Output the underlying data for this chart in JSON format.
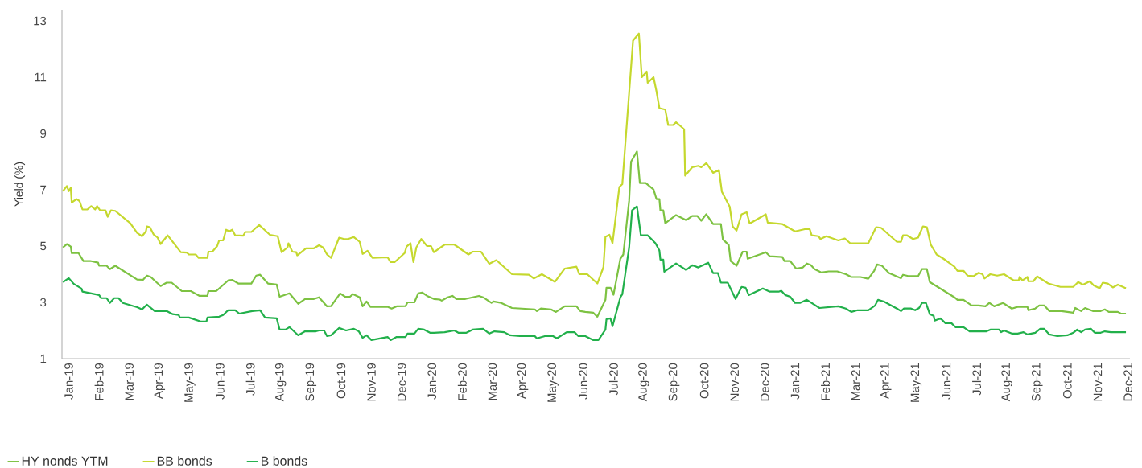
{
  "chart_data": {
    "type": "line",
    "ylabel": "Yield (%)",
    "legend": "bottom",
    "xlim": [
      "2018-12-25",
      "2021-12-03"
    ],
    "ylim": [
      1,
      13.4
    ],
    "yticks": [
      1,
      3,
      5,
      7,
      9,
      11,
      13
    ],
    "xticks": [
      {
        "value": "2019-01",
        "label": "Jan-19"
      },
      {
        "value": "2019-02",
        "label": "Feb-19"
      },
      {
        "value": "2019-03",
        "label": "Mar-19"
      },
      {
        "value": "2019-04",
        "label": "Apr-19"
      },
      {
        "value": "2019-05",
        "label": "May-19"
      },
      {
        "value": "2019-06",
        "label": "Jun-19"
      },
      {
        "value": "2019-07",
        "label": "Jul-19"
      },
      {
        "value": "2019-08",
        "label": "Aug-19"
      },
      {
        "value": "2019-09",
        "label": "Sep-19"
      },
      {
        "value": "2019-10",
        "label": "Oct-19"
      },
      {
        "value": "2019-11",
        "label": "Nov-19"
      },
      {
        "value": "2019-12",
        "label": "Dec-19"
      },
      {
        "value": "2020-01",
        "label": "Jan-20"
      },
      {
        "value": "2020-02",
        "label": "Feb-20"
      },
      {
        "value": "2020-03",
        "label": "Mar-20"
      },
      {
        "value": "2020-04",
        "label": "Apr-20"
      },
      {
        "value": "2020-05",
        "label": "May-20"
      },
      {
        "value": "2020-06",
        "label": "Jun-20"
      },
      {
        "value": "2020-07",
        "label": "Jul-20"
      },
      {
        "value": "2020-08",
        "label": "Aug-20"
      },
      {
        "value": "2020-09",
        "label": "Sep-20"
      },
      {
        "value": "2020-10",
        "label": "Oct-20"
      },
      {
        "value": "2020-11",
        "label": "Nov-20"
      },
      {
        "value": "2020-12",
        "label": "Dec-20"
      },
      {
        "value": "2021-01",
        "label": "Jan-21"
      },
      {
        "value": "2021-02",
        "label": "Feb-21"
      },
      {
        "value": "2021-03",
        "label": "Mar-21"
      },
      {
        "value": "2021-04",
        "label": "Apr-21"
      },
      {
        "value": "2021-05",
        "label": "May-21"
      },
      {
        "value": "2021-06",
        "label": "Jun-21"
      },
      {
        "value": "2021-07",
        "label": "Jul-21"
      },
      {
        "value": "2021-08",
        "label": "Aug-21"
      },
      {
        "value": "2021-09",
        "label": "Sep-21"
      },
      {
        "value": "2021-10",
        "label": "Oct-21"
      },
      {
        "value": "2021-11",
        "label": "Nov-21"
      },
      {
        "value": "2021-12",
        "label": "Dec-21"
      }
    ],
    "series": [
      {
        "name": "HY nonds YTM",
        "color": "#7dc242",
        "x": [
          "2018-12-26",
          "2018-12-30",
          "2019-01-03",
          "2019-01-04",
          "2019-01-11",
          "2019-01-16",
          "2019-01-23",
          "2019-01-31",
          "2019-02-01",
          "2019-02-08",
          "2019-02-11",
          "2019-02-16",
          "2019-03-09",
          "2019-03-15",
          "2019-03-19",
          "2019-03-23",
          "2019-04-02",
          "2019-04-08",
          "2019-04-13",
          "2019-04-23",
          "2019-05-02",
          "2019-05-11",
          "2019-05-19",
          "2019-05-20",
          "2019-05-28",
          "2019-06-09",
          "2019-06-13",
          "2019-06-19",
          "2019-07-02",
          "2019-07-07",
          "2019-07-11",
          "2019-07-19",
          "2019-07-28",
          "2019-07-31",
          "2019-08-10",
          "2019-08-19",
          "2019-08-26",
          "2019-09-04",
          "2019-09-09",
          "2019-09-17",
          "2019-09-21",
          "2019-09-30",
          "2019-10-05",
          "2019-10-10",
          "2019-10-13",
          "2019-10-20",
          "2019-10-23",
          "2019-10-27",
          "2019-10-31",
          "2019-11-17",
          "2019-11-21",
          "2019-11-26",
          "2019-12-05",
          "2019-12-07",
          "2019-12-14",
          "2019-12-18",
          "2019-12-22",
          "2019-12-27",
          "2020-01-03",
          "2020-01-09",
          "2020-01-11",
          "2020-01-17",
          "2020-01-22",
          "2020-01-26",
          "2020-02-04",
          "2020-02-17",
          "2020-02-21",
          "2020-02-29",
          "2020-03-02",
          "2020-03-10",
          "2020-03-21",
          "2020-04-13",
          "2020-04-15",
          "2020-04-19",
          "2020-04-29",
          "2020-05-04",
          "2020-05-13",
          "2020-05-25",
          "2020-05-29",
          "2020-06-03",
          "2020-06-11",
          "2020-06-15",
          "2020-06-23",
          "2020-06-24",
          "2020-06-28",
          "2020-07-01",
          "2020-07-08",
          "2020-07-11",
          "2020-07-17",
          "2020-07-19",
          "2020-07-25",
          "2020-07-28",
          "2020-08-03",
          "2020-08-11",
          "2020-08-14",
          "2020-08-17",
          "2020-08-18",
          "2020-08-21",
          "2020-08-23",
          "2020-09-03",
          "2020-09-13",
          "2020-09-19",
          "2020-09-24",
          "2020-09-28",
          "2020-10-03",
          "2020-10-10",
          "2020-10-18",
          "2020-10-20",
          "2020-10-26",
          "2020-10-28",
          "2020-11-03",
          "2020-11-09",
          "2020-11-13",
          "2020-11-14",
          "2020-12-02",
          "2020-12-06",
          "2020-12-19",
          "2020-12-21",
          "2020-12-27",
          "2021-01-02",
          "2021-01-09",
          "2021-01-13",
          "2021-01-17",
          "2021-01-21",
          "2021-01-28",
          "2021-02-04",
          "2021-02-12",
          "2021-02-20",
          "2021-02-25",
          "2021-03-06",
          "2021-03-14",
          "2021-03-20",
          "2021-03-23",
          "2021-03-28",
          "2021-04-04",
          "2021-04-16",
          "2021-04-18",
          "2021-04-24",
          "2021-05-03",
          "2021-05-07",
          "2021-05-12",
          "2021-05-15",
          "2021-06-09",
          "2021-06-12",
          "2021-06-18",
          "2021-06-26",
          "2021-07-03",
          "2021-07-10",
          "2021-07-14",
          "2021-07-19",
          "2021-07-28",
          "2021-08-06",
          "2021-08-12",
          "2021-08-22",
          "2021-08-23",
          "2021-08-30",
          "2021-09-03",
          "2021-09-08",
          "2021-09-13",
          "2021-09-25",
          "2021-10-07",
          "2021-10-09",
          "2021-10-15",
          "2021-10-19",
          "2021-10-27",
          "2021-11-04",
          "2021-11-08",
          "2021-11-12",
          "2021-11-21",
          "2021-11-24",
          "2021-11-29"
        ],
        "values": [
          4.95,
          5.07,
          4.98,
          4.75,
          4.75,
          4.47,
          4.47,
          4.41,
          4.3,
          4.3,
          4.18,
          4.3,
          3.81,
          3.8,
          3.95,
          3.9,
          3.58,
          3.7,
          3.7,
          3.4,
          3.4,
          3.23,
          3.23,
          3.4,
          3.4,
          3.78,
          3.8,
          3.67,
          3.67,
          3.95,
          3.98,
          3.67,
          3.63,
          3.2,
          3.32,
          2.95,
          3.12,
          3.12,
          3.18,
          2.86,
          2.87,
          3.32,
          3.2,
          3.2,
          3.29,
          3.18,
          2.86,
          3.03,
          2.84,
          2.84,
          2.78,
          2.86,
          2.87,
          3.0,
          3.0,
          3.32,
          3.35,
          3.23,
          3.12,
          3.1,
          3.06,
          3.18,
          3.23,
          3.12,
          3.12,
          3.23,
          3.18,
          2.98,
          3.03,
          2.98,
          2.8,
          2.75,
          2.69,
          2.78,
          2.75,
          2.66,
          2.86,
          2.86,
          2.69,
          2.66,
          2.63,
          2.49,
          3.09,
          3.52,
          3.52,
          3.27,
          4.55,
          4.7,
          6.61,
          8.0,
          8.36,
          7.24,
          7.24,
          7.01,
          6.67,
          6.67,
          6.27,
          6.27,
          5.81,
          6.1,
          5.92,
          6.07,
          6.07,
          5.9,
          6.13,
          5.78,
          5.78,
          5.24,
          5.04,
          4.47,
          4.3,
          4.8,
          4.8,
          4.55,
          4.78,
          4.64,
          4.61,
          4.47,
          4.47,
          4.2,
          4.24,
          4.38,
          4.33,
          4.18,
          4.06,
          4.1,
          4.1,
          4.0,
          3.9,
          3.9,
          3.84,
          4.12,
          4.35,
          4.3,
          4.04,
          3.86,
          3.98,
          3.93,
          3.93,
          4.18,
          4.18,
          3.72,
          3.18,
          3.09,
          3.09,
          2.89,
          2.89,
          2.86,
          2.98,
          2.86,
          2.98,
          2.78,
          2.84,
          2.84,
          2.72,
          2.78,
          2.89,
          2.89,
          2.69,
          2.69,
          2.63,
          2.8,
          2.69,
          2.8,
          2.69,
          2.69,
          2.75,
          2.66,
          2.66,
          2.6,
          2.6
        ]
      },
      {
        "name": "BB bonds",
        "color": "#c5d82e",
        "x": [
          "2018-12-26",
          "2018-12-30",
          "2019-01-01",
          "2019-01-03",
          "2019-01-04",
          "2019-01-09",
          "2019-01-12",
          "2019-01-15",
          "2019-01-20",
          "2019-01-24",
          "2019-01-28",
          "2019-01-30",
          "2019-02-02",
          "2019-02-07",
          "2019-02-09",
          "2019-02-12",
          "2019-02-16",
          "2019-03-02",
          "2019-03-09",
          "2019-03-14",
          "2019-03-18",
          "2019-03-19",
          "2019-03-22",
          "2019-03-26",
          "2019-03-30",
          "2019-04-02",
          "2019-04-09",
          "2019-04-22",
          "2019-04-28",
          "2019-04-30",
          "2019-05-07",
          "2019-05-10",
          "2019-05-19",
          "2019-05-20",
          "2019-05-24",
          "2019-05-29",
          "2019-05-31",
          "2019-06-04",
          "2019-06-07",
          "2019-06-10",
          "2019-06-13",
          "2019-06-16",
          "2019-06-24",
          "2019-06-26",
          "2019-07-02",
          "2019-07-10",
          "2019-07-21",
          "2019-07-29",
          "2019-08-02",
          "2019-08-08",
          "2019-08-09",
          "2019-08-13",
          "2019-08-17",
          "2019-08-18",
          "2019-08-27",
          "2019-09-04",
          "2019-09-09",
          "2019-09-13",
          "2019-09-17",
          "2019-09-21",
          "2019-09-29",
          "2019-10-04",
          "2019-10-08",
          "2019-10-14",
          "2019-10-20",
          "2019-10-23",
          "2019-10-28",
          "2019-11-02",
          "2019-11-17",
          "2019-11-20",
          "2019-11-24",
          "2019-12-04",
          "2019-12-06",
          "2019-12-10",
          "2019-12-13",
          "2019-12-16",
          "2019-12-21",
          "2019-12-27",
          "2019-12-31",
          "2020-01-03",
          "2020-01-14",
          "2020-01-24",
          "2020-02-07",
          "2020-02-11",
          "2020-02-19",
          "2020-02-27",
          "2020-03-05",
          "2020-03-21",
          "2020-04-07",
          "2020-04-12",
          "2020-04-20",
          "2020-05-03",
          "2020-05-13",
          "2020-05-25",
          "2020-05-28",
          "2020-06-05",
          "2020-06-15",
          "2020-06-21",
          "2020-06-23",
          "2020-06-27",
          "2020-06-30",
          "2020-07-07",
          "2020-07-10",
          "2020-07-21",
          "2020-07-27",
          "2020-07-30",
          "2020-08-04",
          "2020-08-05",
          "2020-08-11",
          "2020-08-14",
          "2020-08-17",
          "2020-08-23",
          "2020-08-26",
          "2020-08-31",
          "2020-09-03",
          "2020-09-11",
          "2020-09-12",
          "2020-09-19",
          "2020-09-25",
          "2020-09-28",
          "2020-10-03",
          "2020-10-10",
          "2020-10-16",
          "2020-10-19",
          "2020-10-27",
          "2020-10-30",
          "2020-11-03",
          "2020-11-08",
          "2020-11-13",
          "2020-11-16",
          "2020-12-02",
          "2020-12-04",
          "2020-12-19",
          "2021-01-01",
          "2021-01-11",
          "2021-01-16",
          "2021-01-18",
          "2021-01-25",
          "2021-01-27",
          "2021-02-02",
          "2021-02-13",
          "2021-02-19",
          "2021-02-24",
          "2021-03-14",
          "2021-03-22",
          "2021-03-27",
          "2021-04-12",
          "2021-04-16",
          "2021-04-18",
          "2021-04-22",
          "2021-04-28",
          "2021-05-03",
          "2021-05-08",
          "2021-05-12",
          "2021-05-16",
          "2021-05-22",
          "2021-05-29",
          "2021-06-09",
          "2021-06-12",
          "2021-06-18",
          "2021-06-22",
          "2021-06-28",
          "2021-07-03",
          "2021-07-07",
          "2021-07-09",
          "2021-07-15",
          "2021-07-22",
          "2021-07-29",
          "2021-08-08",
          "2021-08-13",
          "2021-08-14",
          "2021-08-17",
          "2021-08-22",
          "2021-08-23",
          "2021-08-28",
          "2021-09-01",
          "2021-09-12",
          "2021-09-24",
          "2021-10-07",
          "2021-10-12",
          "2021-10-17",
          "2021-10-24",
          "2021-10-28",
          "2021-11-03",
          "2021-11-06",
          "2021-11-11",
          "2021-11-16",
          "2021-11-21",
          "2021-11-29"
        ],
        "values": [
          6.95,
          7.13,
          6.95,
          7.07,
          6.55,
          6.67,
          6.6,
          6.3,
          6.3,
          6.42,
          6.3,
          6.42,
          6.27,
          6.27,
          6.04,
          6.27,
          6.25,
          5.81,
          5.47,
          5.35,
          5.52,
          5.7,
          5.67,
          5.41,
          5.3,
          5.07,
          5.38,
          4.78,
          4.77,
          4.7,
          4.7,
          4.58,
          4.58,
          4.8,
          4.8,
          5.0,
          5.2,
          5.2,
          5.58,
          5.52,
          5.58,
          5.38,
          5.37,
          5.5,
          5.5,
          5.75,
          5.4,
          5.35,
          4.78,
          4.95,
          5.1,
          4.8,
          4.78,
          4.67,
          4.92,
          4.92,
          5.03,
          4.95,
          4.7,
          4.58,
          5.3,
          5.25,
          5.25,
          5.32,
          5.15,
          4.72,
          4.83,
          4.58,
          4.6,
          4.43,
          4.43,
          4.75,
          4.98,
          5.1,
          4.43,
          4.95,
          5.25,
          5.0,
          5.0,
          4.78,
          5.05,
          5.05,
          4.7,
          4.8,
          4.8,
          4.37,
          4.5,
          4.0,
          3.98,
          3.85,
          4.0,
          3.73,
          4.2,
          4.27,
          4.0,
          4.0,
          3.67,
          4.25,
          5.33,
          5.4,
          5.1,
          7.1,
          7.2,
          12.3,
          12.55,
          11.0,
          11.2,
          10.8,
          11.0,
          10.5,
          9.9,
          9.85,
          9.3,
          9.3,
          9.4,
          9.15,
          7.5,
          7.8,
          7.85,
          7.8,
          7.95,
          7.6,
          7.7,
          6.93,
          6.4,
          5.7,
          5.55,
          6.13,
          6.2,
          5.8,
          6.13,
          5.83,
          5.78,
          5.52,
          5.6,
          5.6,
          5.38,
          5.35,
          5.25,
          5.35,
          5.2,
          5.27,
          5.1,
          5.1,
          5.67,
          5.65,
          5.15,
          5.15,
          5.38,
          5.38,
          5.25,
          5.3,
          5.7,
          5.67,
          5.05,
          4.7,
          4.55,
          4.27,
          4.12,
          4.12,
          3.95,
          3.93,
          4.05,
          4.0,
          3.85,
          4.0,
          3.95,
          4.0,
          3.78,
          3.78,
          3.9,
          3.78,
          3.9,
          3.75,
          3.75,
          3.92,
          3.67,
          3.55,
          3.55,
          3.72,
          3.63,
          3.75,
          3.6,
          3.5,
          3.7,
          3.67,
          3.53,
          3.63,
          3.5
        ]
      },
      {
        "name": "B bonds",
        "color": "#22b04b",
        "x": [
          "2018-12-26",
          "2019-01-01",
          "2019-01-06",
          "2019-01-14",
          "2019-01-15",
          "2019-02-01",
          "2019-02-03",
          "2019-02-08",
          "2019-02-11",
          "2019-02-15",
          "2019-02-19",
          "2019-02-23",
          "2019-03-09",
          "2019-03-14",
          "2019-03-19",
          "2019-03-27",
          "2019-04-08",
          "2019-04-14",
          "2019-04-20",
          "2019-04-21",
          "2019-04-30",
          "2019-05-12",
          "2019-05-18",
          "2019-05-19",
          "2019-05-31",
          "2019-06-04",
          "2019-06-09",
          "2019-06-16",
          "2019-06-20",
          "2019-07-03",
          "2019-07-11",
          "2019-07-16",
          "2019-07-28",
          "2019-07-31",
          "2019-08-06",
          "2019-08-10",
          "2019-08-19",
          "2019-08-26",
          "2019-09-06",
          "2019-09-09",
          "2019-09-14",
          "2019-09-17",
          "2019-09-21",
          "2019-09-29",
          "2019-10-06",
          "2019-10-14",
          "2019-10-19",
          "2019-10-23",
          "2019-10-27",
          "2019-11-01",
          "2019-11-17",
          "2019-11-20",
          "2019-11-26",
          "2019-12-05",
          "2019-12-07",
          "2019-12-14",
          "2019-12-18",
          "2019-12-24",
          "2019-12-30",
          "2020-01-03",
          "2020-01-14",
          "2020-01-24",
          "2020-01-28",
          "2020-02-05",
          "2020-02-11",
          "2020-02-21",
          "2020-02-27",
          "2020-03-03",
          "2020-03-13",
          "2020-03-19",
          "2020-03-29",
          "2020-04-13",
          "2020-04-15",
          "2020-04-23",
          "2020-05-01",
          "2020-05-05",
          "2020-05-15",
          "2020-05-23",
          "2020-05-27",
          "2020-06-03",
          "2020-06-11",
          "2020-06-16",
          "2020-06-23",
          "2020-06-24",
          "2020-06-28",
          "2020-06-30",
          "2020-07-08",
          "2020-07-10",
          "2020-07-17",
          "2020-07-20",
          "2020-07-25",
          "2020-07-29",
          "2020-08-05",
          "2020-08-09",
          "2020-08-13",
          "2020-08-17",
          "2020-08-18",
          "2020-08-21",
          "2020-08-22",
          "2020-09-03",
          "2020-09-13",
          "2020-09-19",
          "2020-09-25",
          "2020-10-05",
          "2020-10-10",
          "2020-10-15",
          "2020-10-18",
          "2020-10-25",
          "2020-11-02",
          "2020-11-08",
          "2020-11-12",
          "2020-11-15",
          "2020-11-29",
          "2020-12-06",
          "2020-12-15",
          "2020-12-18",
          "2020-12-22",
          "2020-12-27",
          "2021-01-01",
          "2021-01-06",
          "2021-01-13",
          "2021-01-26",
          "2021-02-13",
          "2021-02-20",
          "2021-02-25",
          "2021-03-03",
          "2021-03-14",
          "2021-03-21",
          "2021-03-24",
          "2021-03-30",
          "2021-04-12",
          "2021-04-16",
          "2021-04-19",
          "2021-04-26",
          "2021-04-30",
          "2021-05-04",
          "2021-05-07",
          "2021-05-11",
          "2021-05-15",
          "2021-05-19",
          "2021-05-20",
          "2021-05-26",
          "2021-05-31",
          "2021-06-06",
          "2021-06-10",
          "2021-06-18",
          "2021-06-24",
          "2021-07-11",
          "2021-07-15",
          "2021-07-24",
          "2021-07-26",
          "2021-07-29",
          "2021-08-06",
          "2021-08-12",
          "2021-08-18",
          "2021-08-22",
          "2021-08-30",
          "2021-09-04",
          "2021-09-08",
          "2021-09-13",
          "2021-09-21",
          "2021-10-01",
          "2021-10-07",
          "2021-10-11",
          "2021-10-15",
          "2021-10-19",
          "2021-10-25",
          "2021-10-29",
          "2021-11-04",
          "2021-11-08",
          "2021-11-14",
          "2021-11-29"
        ],
        "values": [
          3.72,
          3.86,
          3.66,
          3.49,
          3.38,
          3.26,
          3.15,
          3.15,
          2.98,
          3.15,
          3.15,
          2.98,
          2.83,
          2.75,
          2.92,
          2.69,
          2.69,
          2.58,
          2.55,
          2.46,
          2.46,
          2.32,
          2.32,
          2.46,
          2.49,
          2.55,
          2.72,
          2.72,
          2.6,
          2.69,
          2.72,
          2.46,
          2.43,
          2.03,
          2.03,
          2.12,
          1.83,
          1.97,
          1.97,
          2.0,
          2.0,
          1.8,
          1.83,
          2.09,
          2.0,
          2.06,
          1.97,
          1.74,
          1.83,
          1.66,
          1.77,
          1.66,
          1.77,
          1.77,
          1.89,
          1.89,
          2.06,
          2.03,
          1.92,
          1.92,
          1.94,
          2.0,
          1.92,
          1.92,
          2.03,
          2.06,
          1.89,
          1.97,
          1.94,
          1.83,
          1.8,
          1.8,
          1.72,
          1.8,
          1.8,
          1.72,
          1.94,
          1.94,
          1.8,
          1.8,
          1.66,
          1.66,
          2.03,
          2.4,
          2.43,
          2.15,
          3.18,
          3.29,
          4.95,
          6.27,
          6.41,
          5.38,
          5.38,
          5.24,
          5.1,
          4.84,
          4.52,
          4.52,
          4.09,
          4.38,
          4.15,
          4.32,
          4.24,
          4.41,
          4.04,
          4.04,
          3.7,
          3.7,
          3.12,
          3.55,
          3.52,
          3.26,
          3.49,
          3.38,
          3.38,
          3.41,
          3.26,
          3.2,
          2.98,
          2.98,
          3.09,
          2.8,
          2.86,
          2.78,
          2.66,
          2.72,
          2.72,
          2.89,
          3.09,
          3.03,
          2.78,
          2.69,
          2.78,
          2.78,
          2.72,
          2.8,
          2.98,
          2.98,
          2.58,
          2.52,
          2.35,
          2.43,
          2.26,
          2.26,
          2.12,
          2.12,
          1.97,
          1.97,
          2.03,
          2.03,
          1.94,
          2.0,
          1.89,
          1.89,
          1.94,
          1.86,
          1.92,
          2.06,
          2.06,
          1.86,
          1.8,
          1.83,
          1.92,
          2.03,
          1.94,
          2.03,
          2.06,
          1.92,
          1.92,
          1.97,
          1.94,
          1.94
        ]
      }
    ]
  }
}
